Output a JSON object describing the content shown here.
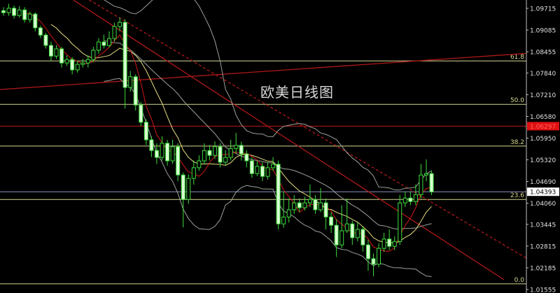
{
  "chart_data": {
    "type": "candlestick",
    "title": "欧美日线图",
    "ylim": [
      1.0145,
      1.0996
    ],
    "y_ticks": [
      "1.09715",
      "1.09085",
      "1.08455",
      "1.07840",
      "1.07210",
      "1.06580",
      "1.05950",
      "1.05320",
      "1.04690",
      "1.04060",
      "1.03445",
      "1.02815",
      "1.02185",
      "1.01555"
    ],
    "grid": false,
    "candles": {
      "open": [
        1.0965,
        1.0959,
        1.0972,
        1.0951,
        1.0967,
        1.0939,
        1.0955,
        1.0915,
        1.0894,
        1.0864,
        1.0833,
        1.0854,
        1.0813,
        1.0823,
        1.0793,
        1.0809,
        1.0813,
        1.0823,
        1.085,
        1.0874,
        1.0864,
        1.0884,
        1.0919,
        1.0931,
        1.0742,
        1.0773,
        1.0691,
        1.0641,
        1.059,
        1.0559,
        1.0539,
        1.058,
        1.0529,
        1.057,
        1.0488,
        1.0417,
        1.0478,
        1.0509,
        1.0529,
        1.0559,
        1.0545,
        1.057,
        1.0525,
        1.0539,
        1.0565,
        1.0574,
        1.0549,
        1.0529,
        1.0492,
        1.0513,
        1.0484,
        1.0509,
        1.0519,
        1.0346,
        1.0366,
        1.0387,
        1.0407,
        1.0393,
        1.0407,
        1.0417,
        1.0387,
        1.0407,
        1.0366,
        1.0342,
        1.0285,
        1.0326,
        1.0346,
        1.0306,
        1.033,
        1.0285,
        1.0245,
        1.0229,
        1.0275,
        1.0302,
        1.0281,
        1.0295,
        1.0407,
        1.0421,
        1.0411,
        1.0431,
        1.0488,
        1.0492
      ],
      "high": [
        1.0975,
        1.0985,
        1.098,
        1.0978,
        1.0975,
        1.0962,
        1.096,
        1.0922,
        1.09,
        1.0875,
        1.0865,
        1.086,
        1.0835,
        1.083,
        1.082,
        1.0825,
        1.0835,
        1.086,
        1.0885,
        1.0895,
        1.0905,
        1.093,
        1.0945,
        1.094,
        1.079,
        1.078,
        1.07,
        1.065,
        1.06,
        1.058,
        1.06,
        1.059,
        1.059,
        1.058,
        1.0495,
        1.049,
        1.053,
        1.0545,
        1.058,
        1.0575,
        1.0585,
        1.058,
        1.056,
        1.059,
        1.061,
        1.0585,
        1.056,
        1.054,
        1.053,
        1.0525,
        1.0525,
        1.054,
        1.053,
        1.044,
        1.042,
        1.043,
        1.042,
        1.0425,
        1.046,
        1.043,
        1.045,
        1.042,
        1.038,
        1.036,
        1.04,
        1.042,
        1.0355,
        1.035,
        1.034,
        1.03,
        1.026,
        1.029,
        1.032,
        1.033,
        1.031,
        1.043,
        1.044,
        1.044,
        1.046,
        1.052,
        1.0533,
        1.05
      ],
      "low": [
        1.095,
        1.095,
        1.0942,
        1.0945,
        1.093,
        1.093,
        1.0905,
        1.0885,
        1.0855,
        1.082,
        1.0825,
        1.08,
        1.0805,
        1.078,
        1.0785,
        1.08,
        1.08,
        1.0815,
        1.084,
        1.0855,
        1.0858,
        1.0875,
        1.0905,
        1.0681,
        1.073,
        1.0675,
        1.063,
        1.0575,
        1.054,
        1.052,
        1.053,
        1.0515,
        1.052,
        1.047,
        1.0336,
        1.0405,
        1.046,
        1.05,
        1.052,
        1.053,
        1.0535,
        1.051,
        1.0515,
        1.053,
        1.055,
        1.053,
        1.051,
        1.048,
        1.0485,
        1.047,
        1.0475,
        1.05,
        1.033,
        1.0335,
        1.035,
        1.0375,
        1.038,
        1.0385,
        1.0395,
        1.0375,
        1.038,
        1.033,
        1.032,
        1.025,
        1.0275,
        1.032,
        1.0285,
        1.0295,
        1.0265,
        1.021,
        1.0194,
        1.022,
        1.0265,
        1.027,
        1.027,
        1.0285,
        1.0395,
        1.04,
        1.04,
        1.042,
        1.047,
        1.043
      ],
      "close": [
        1.0959,
        1.0972,
        1.0951,
        1.0967,
        1.0939,
        1.0955,
        1.0915,
        1.0894,
        1.0864,
        1.0833,
        1.0854,
        1.0813,
        1.0823,
        1.0793,
        1.0809,
        1.0813,
        1.0823,
        1.085,
        1.0874,
        1.0864,
        1.0884,
        1.0919,
        1.0931,
        1.0742,
        1.0773,
        1.0691,
        1.0641,
        1.059,
        1.0559,
        1.0539,
        1.058,
        1.0529,
        1.057,
        1.0488,
        1.0417,
        1.0478,
        1.0509,
        1.0529,
        1.0559,
        1.0545,
        1.057,
        1.0525,
        1.0539,
        1.0565,
        1.0574,
        1.0549,
        1.0529,
        1.0492,
        1.0513,
        1.0484,
        1.0509,
        1.0519,
        1.0346,
        1.0366,
        1.0387,
        1.0407,
        1.0393,
        1.0407,
        1.0417,
        1.0387,
        1.0407,
        1.0366,
        1.0342,
        1.0285,
        1.0326,
        1.0346,
        1.0306,
        1.033,
        1.0285,
        1.0245,
        1.0229,
        1.0275,
        1.0302,
        1.0281,
        1.0295,
        1.0407,
        1.0421,
        1.0411,
        1.0431,
        1.0488,
        1.0492,
        1.0439
      ]
    },
    "fib_levels": [
      {
        "label": "61.8",
        "price": 1.0819
      },
      {
        "label": "50.0",
        "price": 1.0693
      },
      {
        "label": "38.2",
        "price": 1.0572
      },
      {
        "label": "23.6",
        "price": 1.0417
      },
      {
        "label": "0.0",
        "price": 1.0172
      }
    ],
    "price_markers": [
      {
        "label": "1.06297",
        "price": 1.06297,
        "bg": "#e01010",
        "fg": "#ff6060",
        "line": "#c01818"
      },
      {
        "label": "1.04393",
        "price": 1.04393,
        "bg": "#ffffff",
        "fg": "#000000",
        "line": "#8a90c0"
      }
    ],
    "trendlines": [
      {
        "style": "solid",
        "color": "#b01818",
        "from": [
          13.2,
          1.0996
        ],
        "to": [
          94.7,
          1.0184
        ]
      },
      {
        "style": "dashed",
        "color": "#b01818",
        "from": [
          16.2,
          1.0996
        ],
        "to": [
          101.3,
          1.0225
        ]
      },
      {
        "style": "solid",
        "color": "#b01818",
        "from": [
          -0.7,
          1.0736
        ],
        "to": [
          100,
          1.0842
        ]
      }
    ],
    "indicators": {
      "bollinger_period": 20,
      "bollinger_color": "#9aa29a",
      "ma_fast_period": 5,
      "ma_fast_color": "#d01818",
      "ma_slow_period": 10,
      "ma_slow_color": "#e8e080"
    },
    "colors": {
      "candle": "#3ddc3d",
      "candle_fill_up": "#000000",
      "candle_fill_down": "#d8ffd0",
      "fib": "#d8d890",
      "axis": "#c0c0c0"
    }
  }
}
